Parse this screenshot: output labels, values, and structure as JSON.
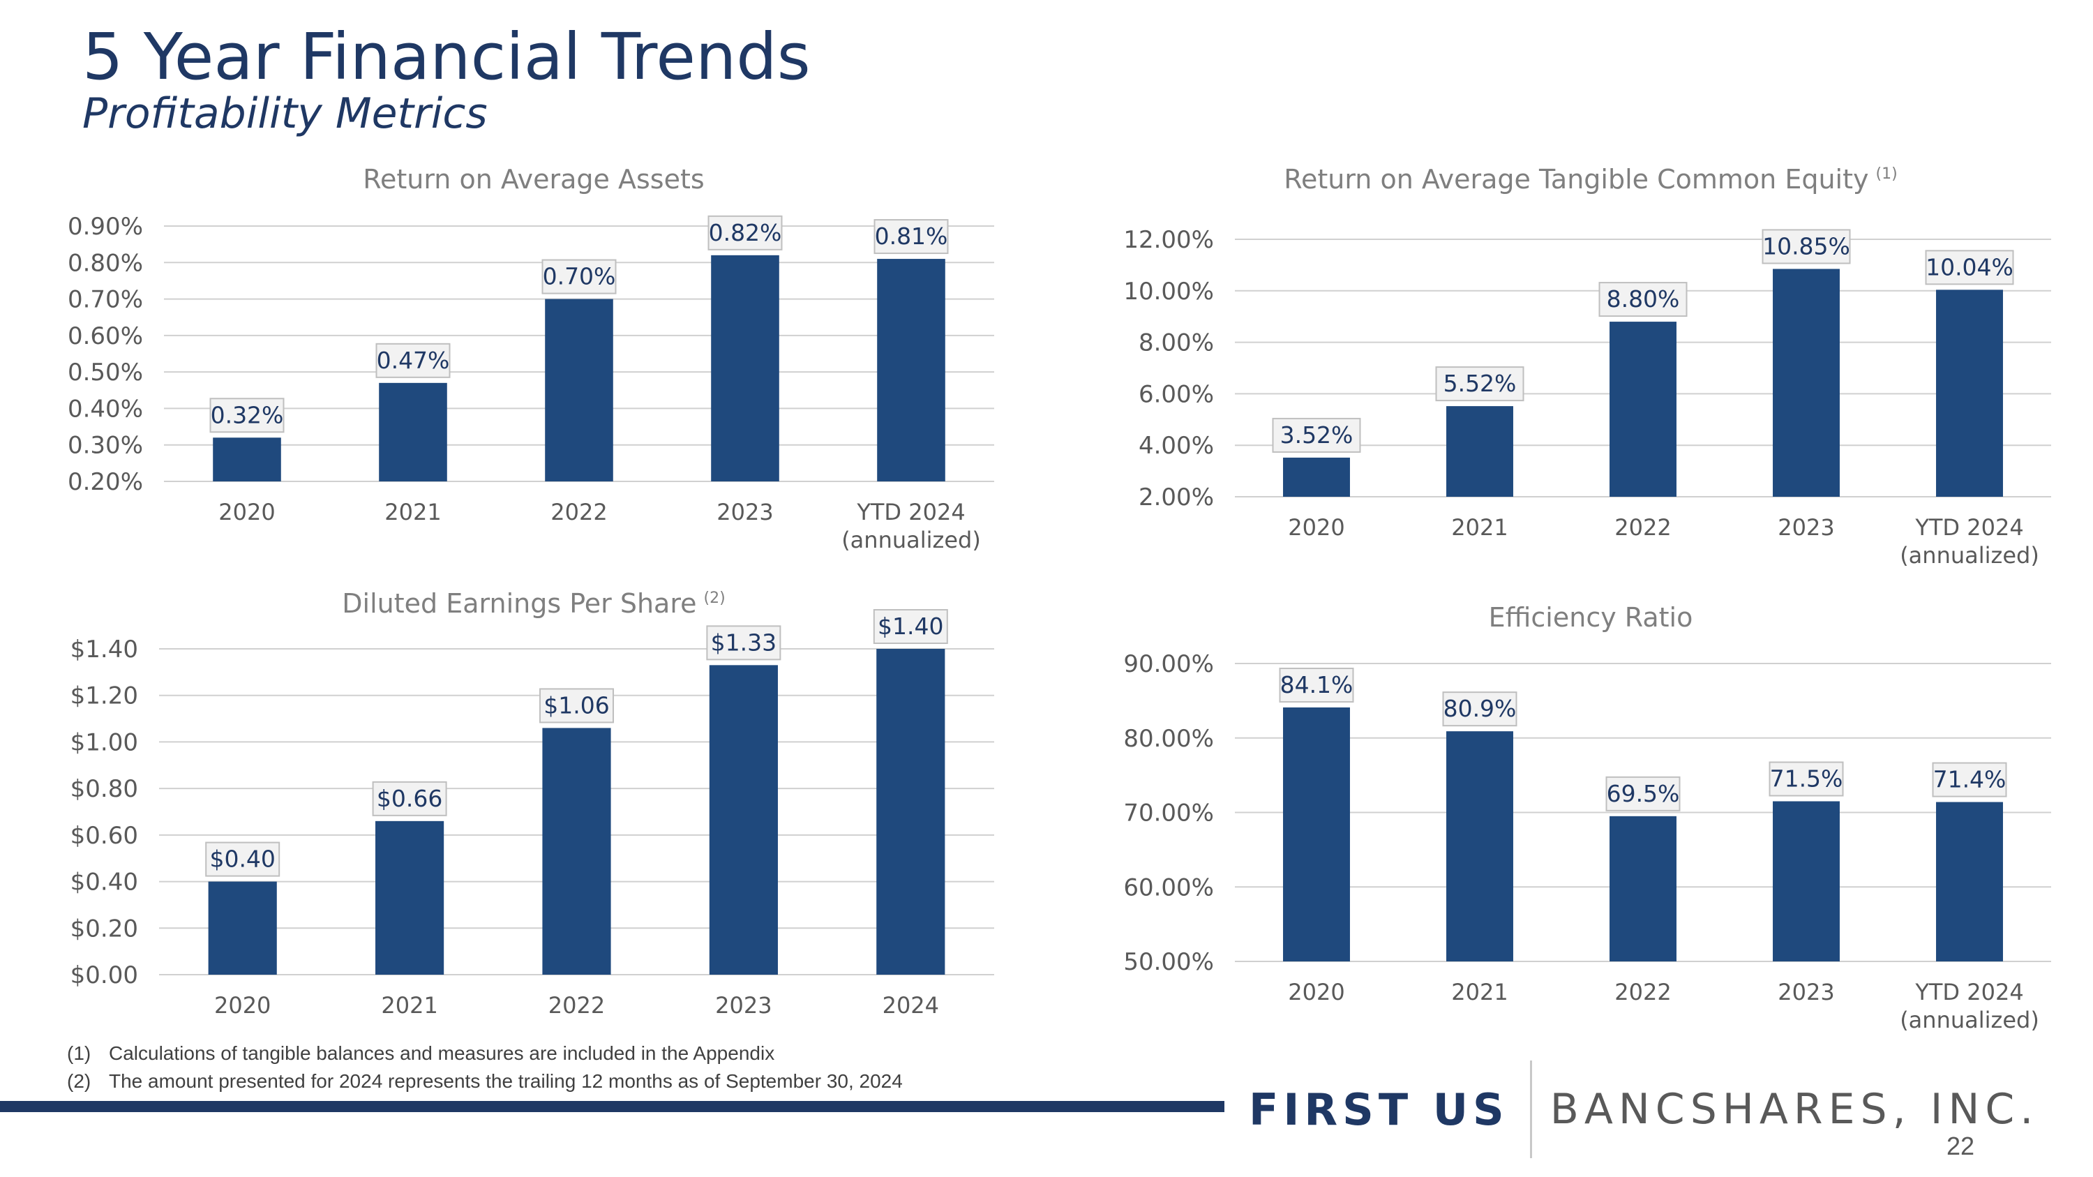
{
  "header": {
    "title": "5 Year Financial Trends",
    "subtitle": "Profitability Metrics"
  },
  "chart_data": [
    {
      "type": "bar",
      "title": "Return on Average Assets",
      "title_sup": "",
      "categories": [
        [
          "2020"
        ],
        [
          "2021"
        ],
        [
          "2022"
        ],
        [
          "2023"
        ],
        [
          "YTD 2024",
          "(annualized)"
        ]
      ],
      "values": [
        0.32,
        0.47,
        0.7,
        0.82,
        0.81
      ],
      "labels": [
        "0.32%",
        "0.47%",
        "0.70%",
        "0.82%",
        "0.81%"
      ],
      "ylim": [
        0.2,
        0.9
      ],
      "yticks": [
        0.2,
        0.3,
        0.4,
        0.5,
        0.6,
        0.7,
        0.8,
        0.9
      ],
      "ytick_labels": [
        "0.20%",
        "0.30%",
        "0.40%",
        "0.50%",
        "0.60%",
        "0.70%",
        "0.80%",
        "0.90%"
      ],
      "grid": true,
      "color": "#1f497d"
    },
    {
      "type": "bar",
      "title": "Return on Average Tangible Common Equity",
      "title_sup": "(1)",
      "categories": [
        [
          "2020"
        ],
        [
          "2021"
        ],
        [
          "2022"
        ],
        [
          "2023"
        ],
        [
          "YTD 2024",
          "(annualized)"
        ]
      ],
      "values": [
        3.52,
        5.52,
        8.8,
        10.85,
        10.04
      ],
      "labels": [
        "3.52%",
        "5.52%",
        "8.80%",
        "10.85%",
        "10.04%"
      ],
      "ylim": [
        2.0,
        12.0
      ],
      "yticks": [
        2.0,
        4.0,
        6.0,
        8.0,
        10.0,
        12.0
      ],
      "ytick_labels": [
        "2.00%",
        "4.00%",
        "6.00%",
        "8.00%",
        "10.00%",
        "12.00%"
      ],
      "grid": true,
      "color": "#1f497d"
    },
    {
      "type": "bar",
      "title": "Diluted Earnings Per Share",
      "title_sup": "(2)",
      "categories": [
        [
          "2020"
        ],
        [
          "2021"
        ],
        [
          "2022"
        ],
        [
          "2023"
        ],
        [
          "2024"
        ]
      ],
      "values": [
        0.4,
        0.66,
        1.06,
        1.33,
        1.4
      ],
      "labels": [
        "$0.40",
        "$0.66",
        "$1.06",
        "$1.33",
        "$1.40"
      ],
      "ylim": [
        0.0,
        1.4
      ],
      "yticks": [
        0.0,
        0.2,
        0.4,
        0.6,
        0.8,
        1.0,
        1.2,
        1.4
      ],
      "ytick_labels": [
        "$0.00",
        "$0.20",
        "$0.40",
        "$0.60",
        "$0.80",
        "$1.00",
        "$1.20",
        "$1.40"
      ],
      "grid": true,
      "color": "#1f497d"
    },
    {
      "type": "bar",
      "title": "Efficiency Ratio",
      "title_sup": "",
      "categories": [
        [
          "2020"
        ],
        [
          "2021"
        ],
        [
          "2022"
        ],
        [
          "2023"
        ],
        [
          "YTD 2024",
          "(annualized)"
        ]
      ],
      "values": [
        84.1,
        80.9,
        69.5,
        71.5,
        71.4
      ],
      "labels": [
        "84.1%",
        "80.9%",
        "69.5%",
        "71.5%",
        "71.4%"
      ],
      "ylim": [
        50.0,
        90.0
      ],
      "yticks": [
        50.0,
        60.0,
        70.0,
        80.0,
        90.0
      ],
      "ytick_labels": [
        "50.00%",
        "60.00%",
        "70.00%",
        "80.00%",
        "90.00%"
      ],
      "grid": true,
      "color": "#1f497d"
    }
  ],
  "footnotes": [
    {
      "num": "(1)",
      "text": "Calculations of tangible balances and measures are included in the Appendix"
    },
    {
      "num": "(2)",
      "text": "The amount presented for 2024 represents the trailing 12 months as of September 30, 2024"
    }
  ],
  "footer": {
    "logo_main": "FIRST US",
    "logo_sub": "BANCSHARES, INC.",
    "page_number": "22"
  }
}
